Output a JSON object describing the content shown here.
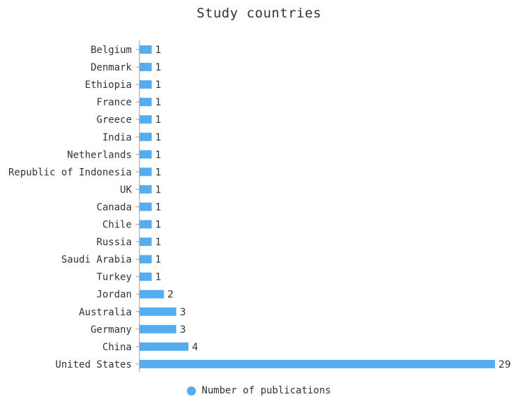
{
  "colors": {
    "bar": "#55acee",
    "axis": "#999999",
    "text": "#333333"
  },
  "chart_data": {
    "type": "bar",
    "orientation": "horizontal",
    "title": "Study countries",
    "xlabel": "",
    "ylabel": "",
    "categories": [
      "Belgium",
      "Denmark",
      "Ethiopia",
      "France",
      "Greece",
      "India",
      "Netherlands",
      "Republic of Indonesia",
      "UK",
      "Canada",
      "Chile",
      "Russia",
      "Saudi Arabia",
      "Turkey",
      "Jordan",
      "Australia",
      "Germany",
      "China",
      "United States"
    ],
    "series": [
      {
        "name": "Number of publications",
        "values": [
          1,
          1,
          1,
          1,
          1,
          1,
          1,
          1,
          1,
          1,
          1,
          1,
          1,
          1,
          2,
          3,
          3,
          4,
          29
        ]
      }
    ],
    "xlim": [
      0,
      29
    ],
    "grid": false,
    "data_labels": true,
    "legend_position": "bottom-center"
  }
}
